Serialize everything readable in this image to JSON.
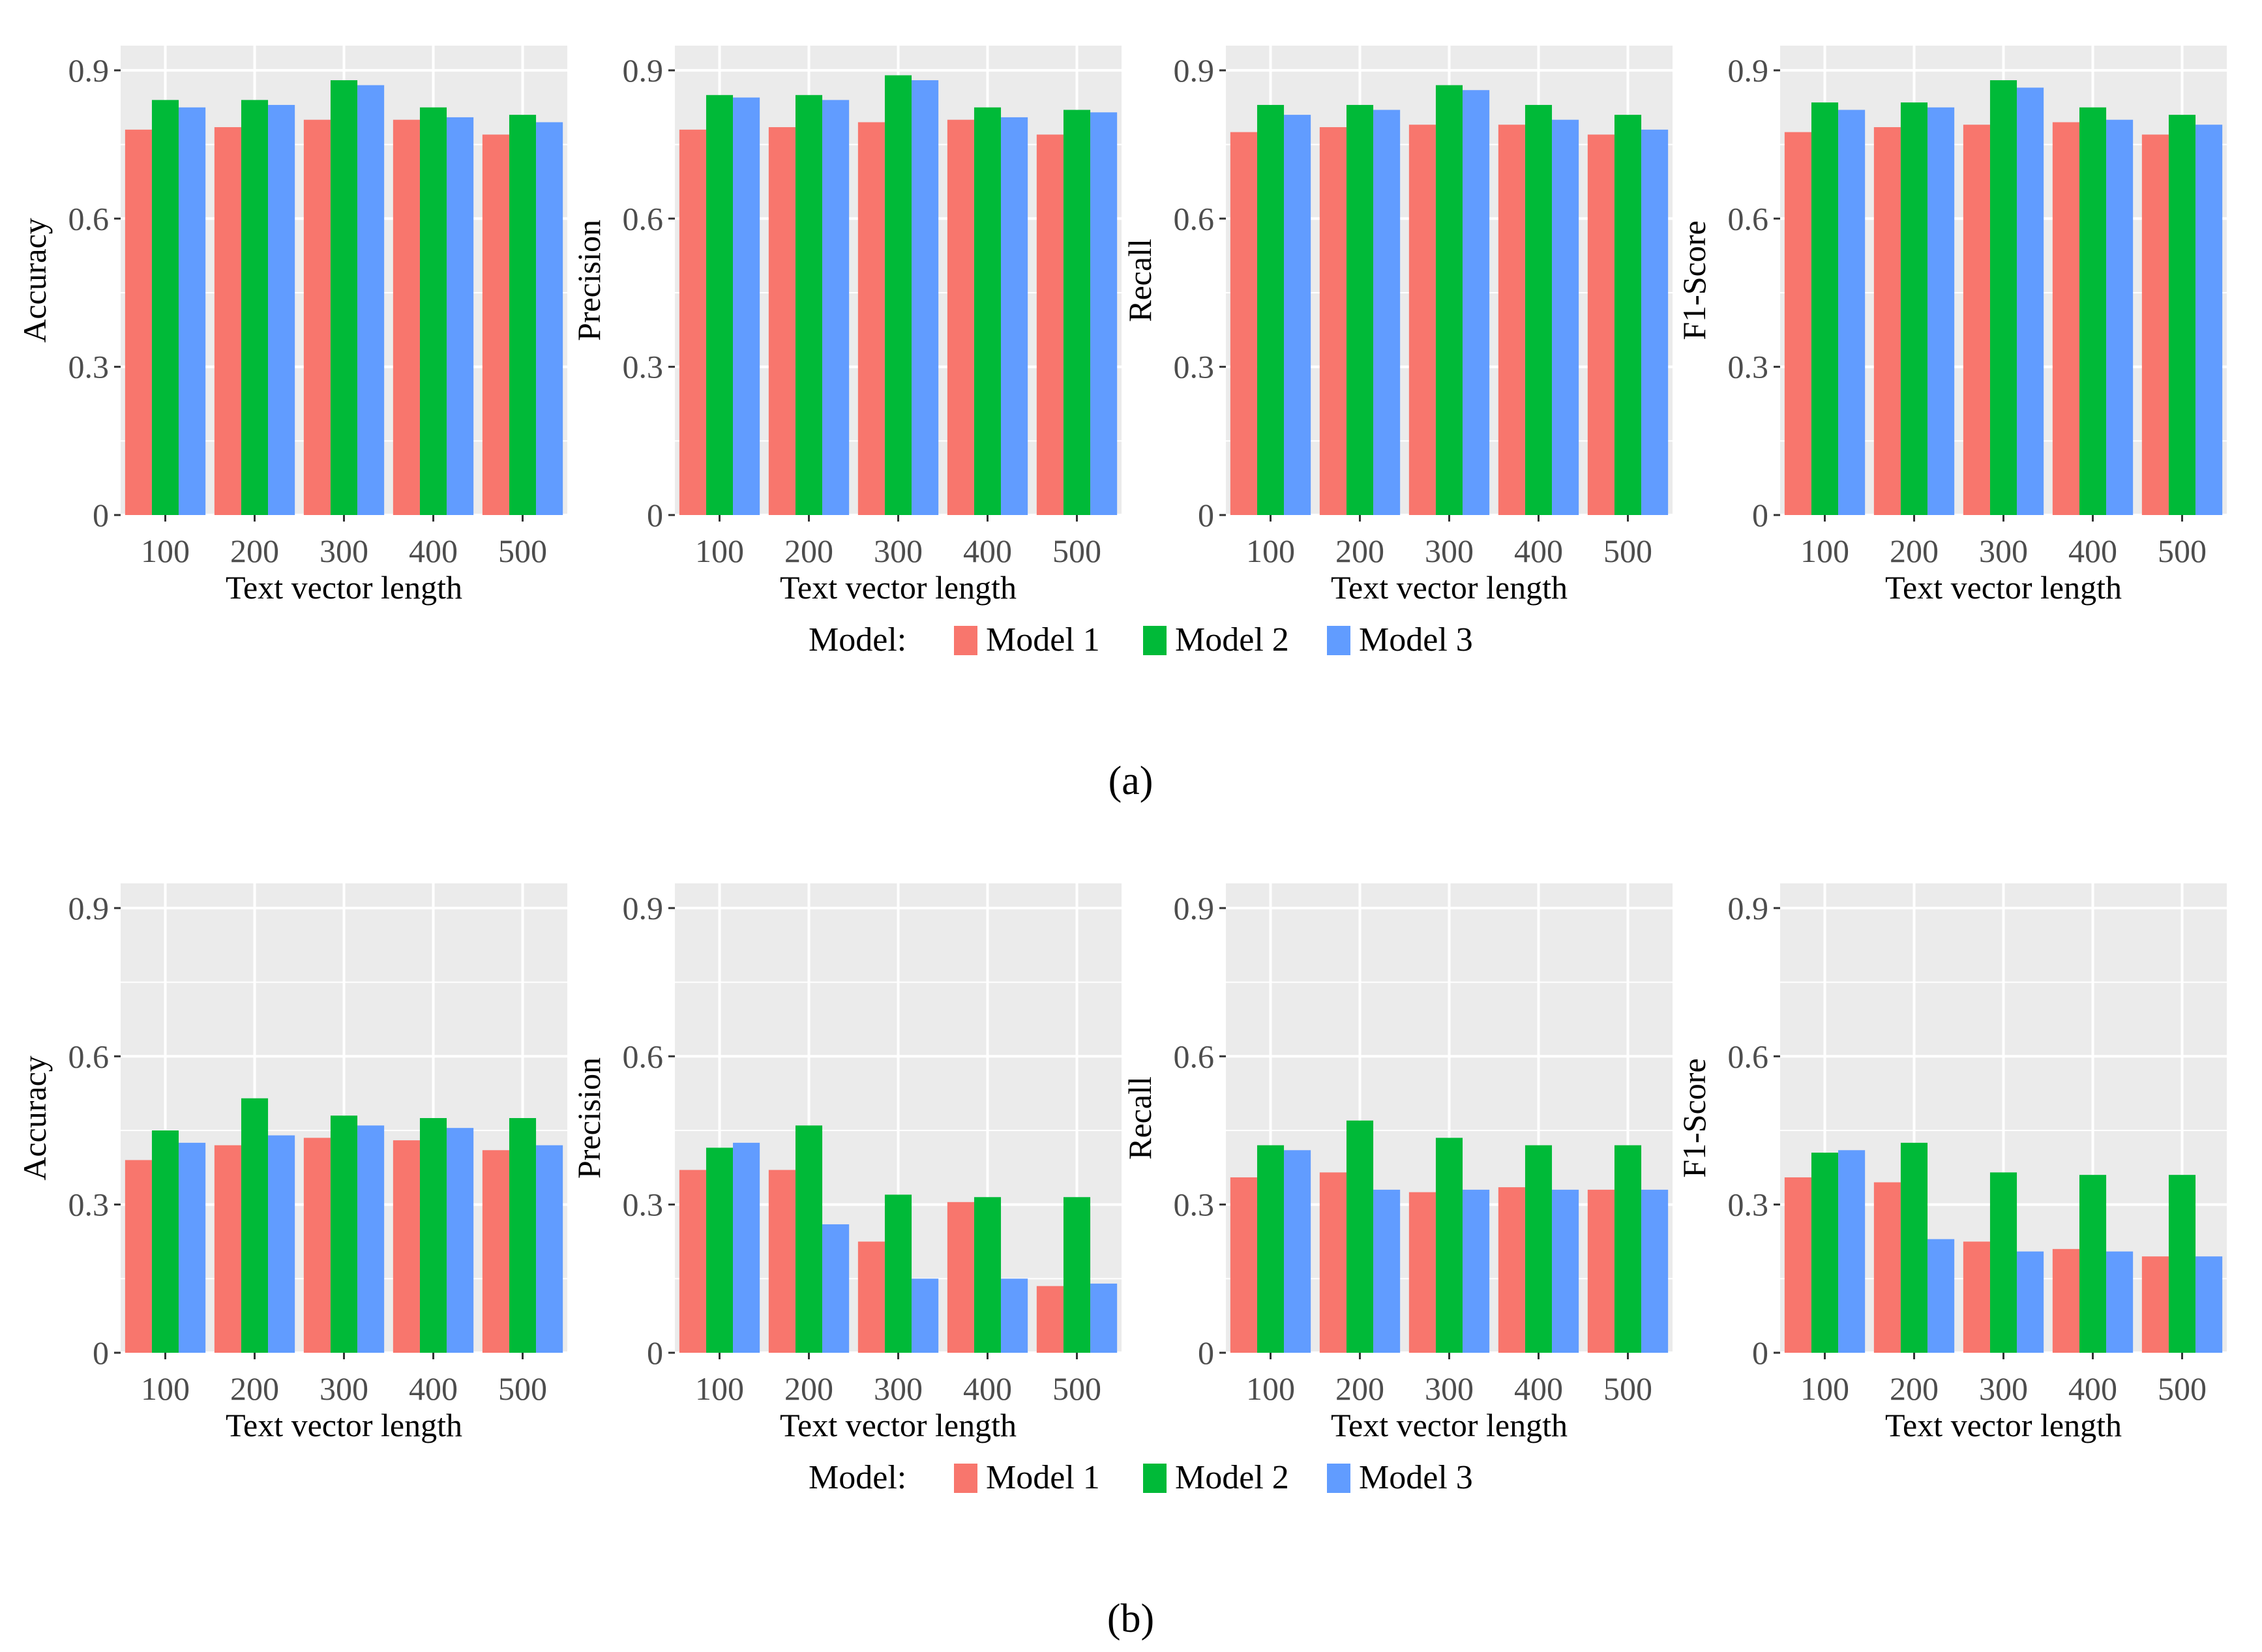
{
  "colors": {
    "model1": "#F8766D",
    "model2": "#00BA38",
    "model3": "#619CFF",
    "panel_bg": "#EBEBEB",
    "grid": "#FFFFFF"
  },
  "legend": {
    "title": "Model:",
    "entries": [
      "Model 1",
      "Model 2",
      "Model 3"
    ]
  },
  "captions": {
    "a": "(a)",
    "b": "(b)"
  },
  "chart_data": [
    {
      "group": "a",
      "type": "bar",
      "title": "",
      "xlabel": "Text vector length",
      "ylabel": "Accuracy",
      "categories": [
        "100",
        "200",
        "300",
        "400",
        "500"
      ],
      "ylim": [
        0,
        0.95
      ],
      "yticks": [
        "0",
        "0.3",
        "0.6",
        "0.9"
      ],
      "series": [
        {
          "name": "Model 1",
          "values": [
            0.78,
            0.785,
            0.8,
            0.8,
            0.77
          ]
        },
        {
          "name": "Model 2",
          "values": [
            0.84,
            0.84,
            0.88,
            0.825,
            0.81
          ]
        },
        {
          "name": "Model 3",
          "values": [
            0.825,
            0.83,
            0.87,
            0.805,
            0.795
          ]
        }
      ]
    },
    {
      "group": "a",
      "type": "bar",
      "title": "",
      "xlabel": "Text vector length",
      "ylabel": "Precision",
      "categories": [
        "100",
        "200",
        "300",
        "400",
        "500"
      ],
      "ylim": [
        0,
        0.95
      ],
      "yticks": [
        "0",
        "0.3",
        "0.6",
        "0.9"
      ],
      "series": [
        {
          "name": "Model 1",
          "values": [
            0.78,
            0.785,
            0.795,
            0.8,
            0.77
          ]
        },
        {
          "name": "Model 2",
          "values": [
            0.85,
            0.85,
            0.89,
            0.825,
            0.82
          ]
        },
        {
          "name": "Model 3",
          "values": [
            0.845,
            0.84,
            0.88,
            0.805,
            0.815
          ]
        }
      ]
    },
    {
      "group": "a",
      "type": "bar",
      "title": "",
      "xlabel": "Text vector length",
      "ylabel": "Recall",
      "categories": [
        "100",
        "200",
        "300",
        "400",
        "500"
      ],
      "ylim": [
        0,
        0.95
      ],
      "yticks": [
        "0",
        "0.3",
        "0.6",
        "0.9"
      ],
      "series": [
        {
          "name": "Model 1",
          "values": [
            0.775,
            0.785,
            0.79,
            0.79,
            0.77
          ]
        },
        {
          "name": "Model 2",
          "values": [
            0.83,
            0.83,
            0.87,
            0.83,
            0.81
          ]
        },
        {
          "name": "Model 3",
          "values": [
            0.81,
            0.82,
            0.86,
            0.8,
            0.78
          ]
        }
      ]
    },
    {
      "group": "a",
      "type": "bar",
      "title": "",
      "xlabel": "Text vector length",
      "ylabel": "F1-Score",
      "categories": [
        "100",
        "200",
        "300",
        "400",
        "500"
      ],
      "ylim": [
        0,
        0.95
      ],
      "yticks": [
        "0",
        "0.3",
        "0.6",
        "0.9"
      ],
      "series": [
        {
          "name": "Model 1",
          "values": [
            0.775,
            0.785,
            0.79,
            0.795,
            0.77
          ]
        },
        {
          "name": "Model 2",
          "values": [
            0.835,
            0.835,
            0.88,
            0.825,
            0.81
          ]
        },
        {
          "name": "Model 3",
          "values": [
            0.82,
            0.825,
            0.865,
            0.8,
            0.79
          ]
        }
      ]
    },
    {
      "group": "b",
      "type": "bar",
      "title": "",
      "xlabel": "Text vector length",
      "ylabel": "Accuracy",
      "categories": [
        "100",
        "200",
        "300",
        "400",
        "500"
      ],
      "ylim": [
        0,
        0.95
      ],
      "yticks": [
        "0",
        "0.3",
        "0.6",
        "0.9"
      ],
      "series": [
        {
          "name": "Model 1",
          "values": [
            0.39,
            0.42,
            0.435,
            0.43,
            0.41
          ]
        },
        {
          "name": "Model 2",
          "values": [
            0.45,
            0.515,
            0.48,
            0.475,
            0.475
          ]
        },
        {
          "name": "Model 3",
          "values": [
            0.425,
            0.44,
            0.46,
            0.455,
            0.42
          ]
        }
      ]
    },
    {
      "group": "b",
      "type": "bar",
      "title": "",
      "xlabel": "Text vector length",
      "ylabel": "Precision",
      "categories": [
        "100",
        "200",
        "300",
        "400",
        "500"
      ],
      "ylim": [
        0,
        0.95
      ],
      "yticks": [
        "0",
        "0.3",
        "0.6",
        "0.9"
      ],
      "series": [
        {
          "name": "Model 1",
          "values": [
            0.37,
            0.37,
            0.225,
            0.305,
            0.135
          ]
        },
        {
          "name": "Model 2",
          "values": [
            0.415,
            0.46,
            0.32,
            0.315,
            0.315
          ]
        },
        {
          "name": "Model 3",
          "values": [
            0.425,
            0.26,
            0.15,
            0.15,
            0.14
          ]
        }
      ]
    },
    {
      "group": "b",
      "type": "bar",
      "title": "",
      "xlabel": "Text vector length",
      "ylabel": "Recall",
      "categories": [
        "100",
        "200",
        "300",
        "400",
        "500"
      ],
      "ylim": [
        0,
        0.95
      ],
      "yticks": [
        "0",
        "0.3",
        "0.6",
        "0.9"
      ],
      "series": [
        {
          "name": "Model 1",
          "values": [
            0.355,
            0.365,
            0.325,
            0.335,
            0.33
          ]
        },
        {
          "name": "Model 2",
          "values": [
            0.42,
            0.47,
            0.435,
            0.42,
            0.42
          ]
        },
        {
          "name": "Model 3",
          "values": [
            0.41,
            0.33,
            0.33,
            0.33,
            0.33
          ]
        }
      ]
    },
    {
      "group": "b",
      "type": "bar",
      "title": "",
      "xlabel": "Text vector length",
      "ylabel": "F1-Score",
      "categories": [
        "100",
        "200",
        "300",
        "400",
        "500"
      ],
      "ylim": [
        0,
        0.95
      ],
      "yticks": [
        "0",
        "0.3",
        "0.6",
        "0.9"
      ],
      "series": [
        {
          "name": "Model 1",
          "values": [
            0.355,
            0.345,
            0.225,
            0.21,
            0.195
          ]
        },
        {
          "name": "Model 2",
          "values": [
            0.405,
            0.425,
            0.365,
            0.36,
            0.36
          ]
        },
        {
          "name": "Model 3",
          "values": [
            0.41,
            0.23,
            0.205,
            0.205,
            0.195
          ]
        }
      ]
    }
  ]
}
